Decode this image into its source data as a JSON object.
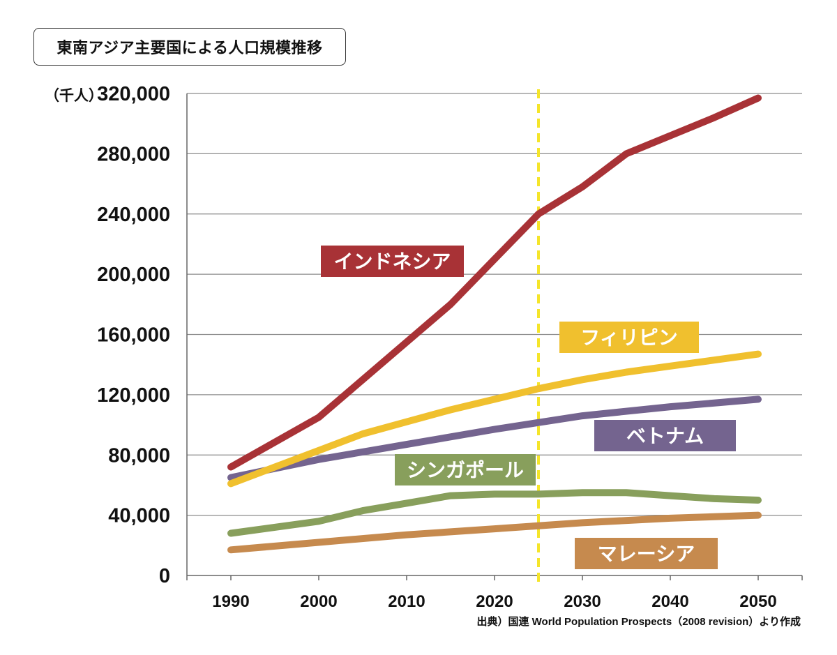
{
  "title": "東南アジア主要国による人口規模推移",
  "source": "出典）国連 World Population Prospects（2008 revision）より作成",
  "chart_data": {
    "type": "line",
    "ylabel": "（千人）",
    "ylim": [
      0,
      320000
    ],
    "yticks": [
      0,
      40000,
      80000,
      120000,
      160000,
      200000,
      240000,
      280000,
      320000
    ],
    "ytick_labels": [
      "0",
      "40,000",
      "80,000",
      "120,000",
      "160,000",
      "200,000",
      "240,000",
      "280,000",
      "320,000"
    ],
    "xlim": [
      1985,
      2055
    ],
    "xticks": [
      1990,
      2000,
      2010,
      2020,
      2030,
      2040,
      2050
    ],
    "xtick_labels": [
      "1990",
      "2000",
      "2010",
      "2020",
      "2030",
      "2040",
      "2050"
    ],
    "grid": true,
    "marker_line": {
      "x": 2025,
      "color": "#f5e52a",
      "style": "dashed"
    },
    "series": [
      {
        "name": "インドネシア",
        "color": "#a83236",
        "x": [
          1990,
          2000,
          2005,
          2010,
          2015,
          2020,
          2025,
          2030,
          2035,
          2040,
          2045,
          2050
        ],
        "y": [
          72000,
          105000,
          130000,
          155000,
          180000,
          210000,
          240000,
          258000,
          280000,
          292000,
          304000,
          317000
        ]
      },
      {
        "name": "フィリピン",
        "color": "#f0c02e",
        "x": [
          1990,
          1995,
          2000,
          2005,
          2010,
          2015,
          2020,
          2025,
          2030,
          2035,
          2040,
          2045,
          2050
        ],
        "y": [
          61000,
          72000,
          83000,
          94000,
          102000,
          110000,
          117000,
          124000,
          130000,
          135000,
          139000,
          143000,
          147000
        ]
      },
      {
        "name": "ベトナム",
        "color": "#74648f",
        "x": [
          1990,
          2000,
          2010,
          2020,
          2030,
          2040,
          2050
        ],
        "y": [
          65000,
          77000,
          87000,
          97000,
          106000,
          112000,
          117000
        ]
      },
      {
        "name": "シンガポール",
        "color": "#889f5c",
        "x": [
          1990,
          2000,
          2005,
          2010,
          2015,
          2020,
          2025,
          2030,
          2035,
          2040,
          2045,
          2050
        ],
        "y": [
          28000,
          36000,
          43000,
          48000,
          53000,
          54000,
          54000,
          55000,
          55000,
          53000,
          51000,
          50000
        ]
      },
      {
        "name": "マレーシア",
        "color": "#c68a4e",
        "x": [
          1990,
          2000,
          2010,
          2020,
          2030,
          2040,
          2050
        ],
        "y": [
          17000,
          22000,
          27000,
          31000,
          35000,
          38000,
          40000
        ]
      }
    ]
  }
}
